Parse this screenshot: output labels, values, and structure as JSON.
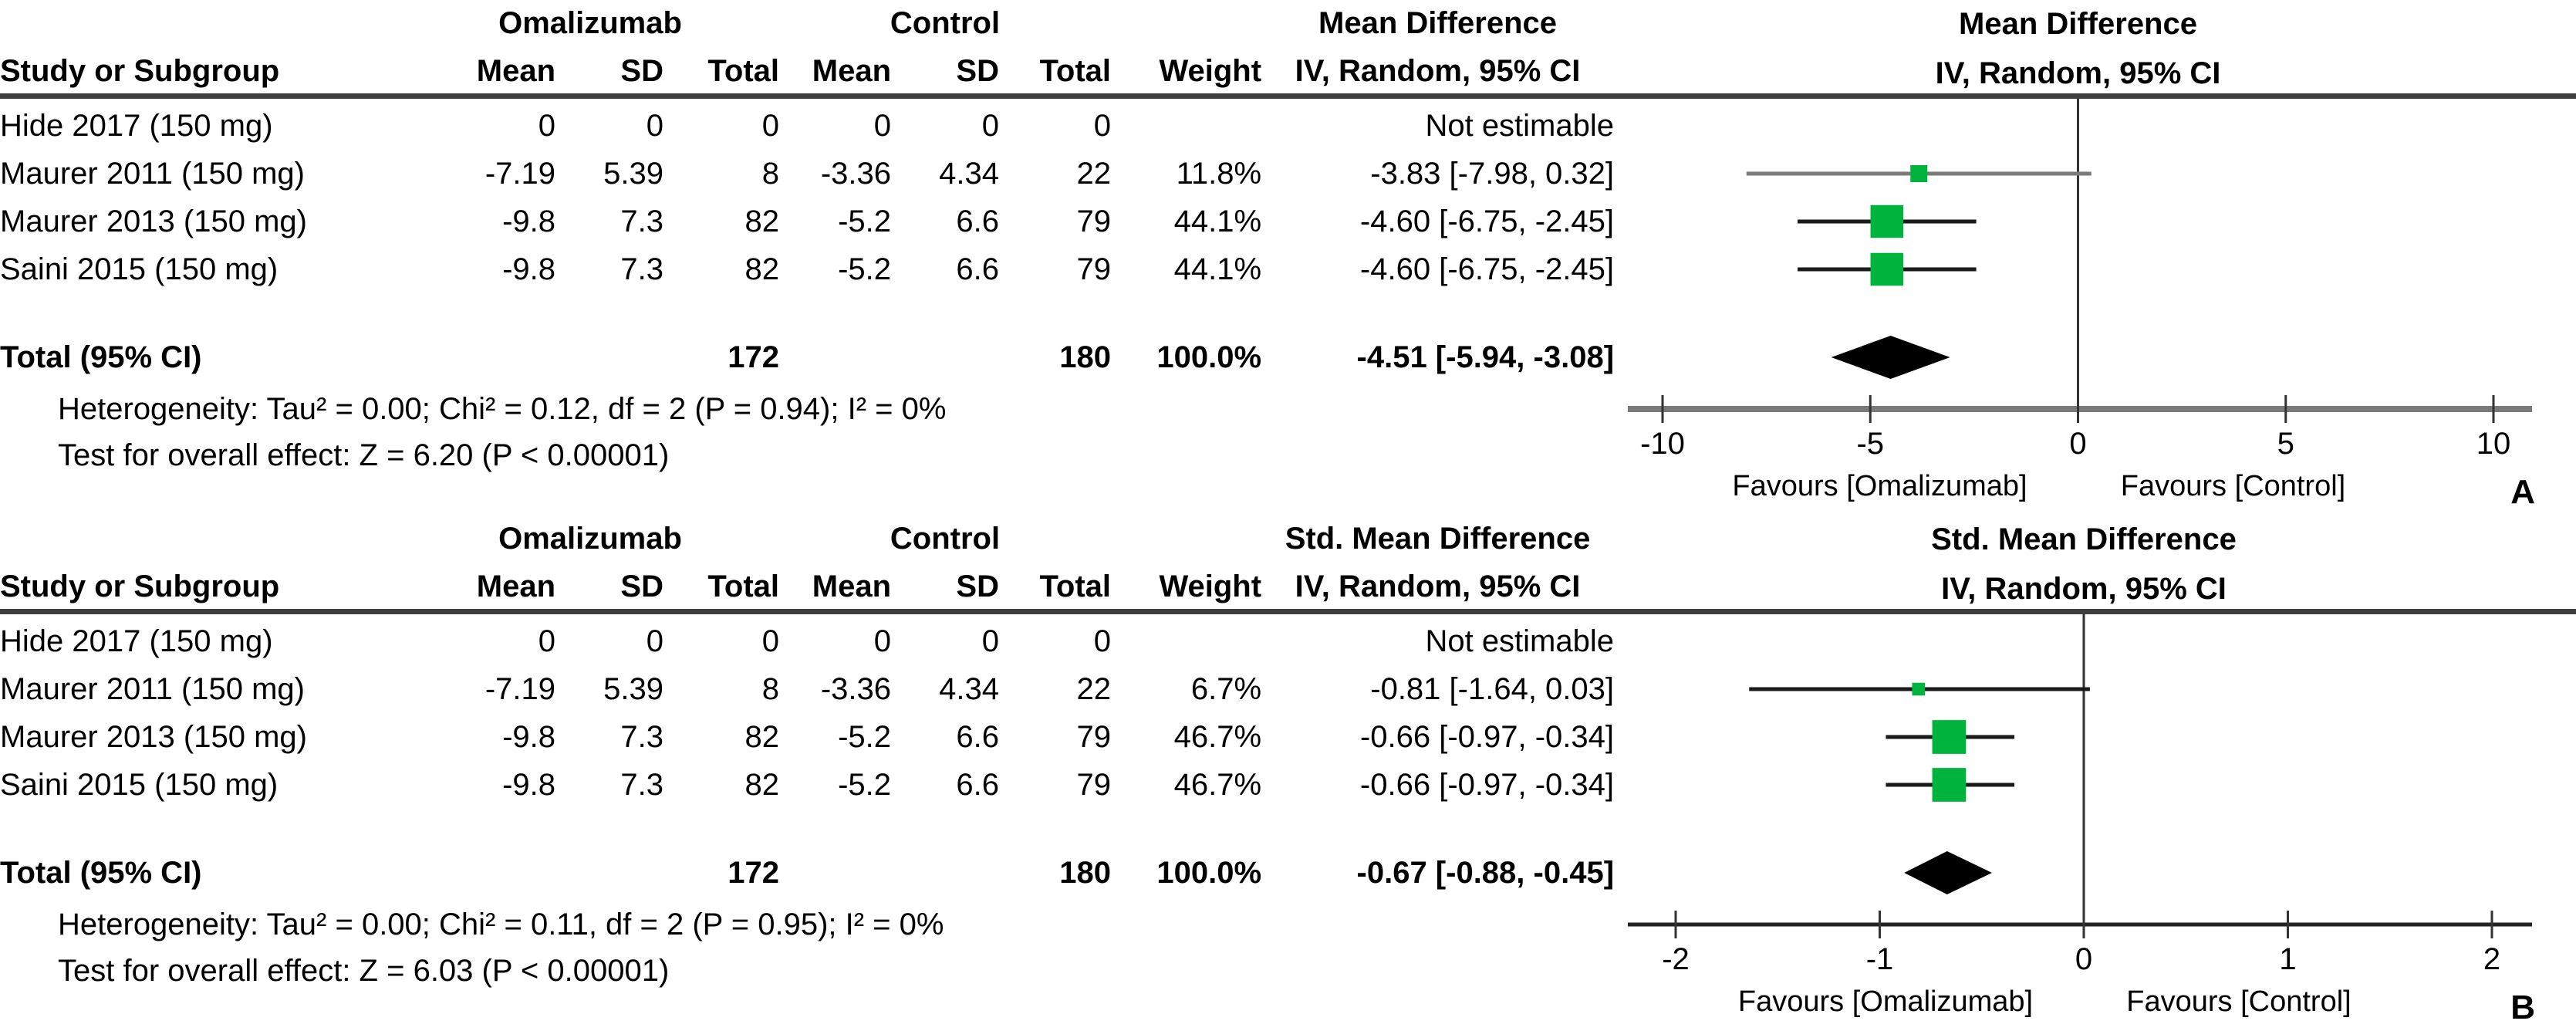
{
  "chart_data": [
    {
      "type": "forest",
      "panel_label": "A",
      "effect_label": "Mean Difference",
      "group_headers": {
        "treatment": "Omalizumab",
        "control": "Control"
      },
      "col_headers": {
        "study": "Study or Subgroup",
        "mean1": "Mean",
        "sd1": "SD",
        "total1": "Total",
        "mean2": "Mean",
        "sd2": "SD",
        "total2": "Total",
        "weight": "Weight",
        "ci": "IV, Random, 95% CI"
      },
      "plot_header_line1": "Mean Difference",
      "plot_header_line2": "IV, Random, 95% CI",
      "rows": [
        {
          "study": "Hide 2017 (150 mg)",
          "mean1": "0",
          "sd1": "0",
          "total1": "0",
          "mean2": "0",
          "sd2": "0",
          "total2": "0",
          "weight": "",
          "ci_text": "Not estimable"
        },
        {
          "study": "Maurer 2011 (150 mg)",
          "mean1": "-7.19",
          "sd1": "5.39",
          "total1": "8",
          "mean2": "-3.36",
          "sd2": "4.34",
          "total2": "22",
          "weight": "11.8%",
          "ci_text": "-3.83 [-7.98, 0.32]",
          "est": -3.83,
          "lo": -7.98,
          "hi": 0.32,
          "weight_pct": 11.8,
          "line_color": "#7a7a7a"
        },
        {
          "study": "Maurer 2013 (150 mg)",
          "mean1": "-9.8",
          "sd1": "7.3",
          "total1": "82",
          "mean2": "-5.2",
          "sd2": "6.6",
          "total2": "79",
          "weight": "44.1%",
          "ci_text": "-4.60 [-6.75, -2.45]",
          "est": -4.6,
          "lo": -6.75,
          "hi": -2.45,
          "weight_pct": 44.1,
          "line_color": "#1a1a1a"
        },
        {
          "study": "Saini 2015 (150 mg)",
          "mean1": "-9.8",
          "sd1": "7.3",
          "total1": "82",
          "mean2": "-5.2",
          "sd2": "6.6",
          "total2": "79",
          "weight": "44.1%",
          "ci_text": "-4.60 [-6.75, -2.45]",
          "est": -4.6,
          "lo": -6.75,
          "hi": -2.45,
          "weight_pct": 44.1,
          "line_color": "#1a1a1a"
        }
      ],
      "total": {
        "label": "Total (95% CI)",
        "total1": "172",
        "total2": "180",
        "weight": "100.0%",
        "ci_text": "-4.51 [-5.94, -3.08]",
        "est": -4.51,
        "lo": -5.94,
        "hi": -3.08
      },
      "heterogeneity": "Heterogeneity: Tau² = 0.00; Chi² = 0.12, df = 2 (P = 0.94); I² = 0%",
      "overall_effect": "Test for overall effect: Z = 6.20 (P < 0.00001)",
      "axis": {
        "min": -10,
        "max": 10,
        "ticks": [
          -10,
          -5,
          0,
          5,
          10
        ],
        "favours_left": "Favours [Omalizumab]",
        "favours_right": "Favours [Control]"
      },
      "marker_color": "#00b33c",
      "diamond_color": "#000000"
    },
    {
      "type": "forest",
      "panel_label": "B",
      "effect_label": "Std. Mean Difference",
      "group_headers": {
        "treatment": "Omalizumab",
        "control": "Control"
      },
      "col_headers": {
        "study": "Study or Subgroup",
        "mean1": "Mean",
        "sd1": "SD",
        "total1": "Total",
        "mean2": "Mean",
        "sd2": "SD",
        "total2": "Total",
        "weight": "Weight",
        "ci": "IV, Random, 95% CI"
      },
      "plot_header_line1": "Std. Mean Difference",
      "plot_header_line2": "IV, Random, 95% CI",
      "rows": [
        {
          "study": "Hide 2017 (150 mg)",
          "mean1": "0",
          "sd1": "0",
          "total1": "0",
          "mean2": "0",
          "sd2": "0",
          "total2": "0",
          "weight": "",
          "ci_text": "Not estimable"
        },
        {
          "study": "Maurer 2011 (150 mg)",
          "mean1": "-7.19",
          "sd1": "5.39",
          "total1": "8",
          "mean2": "-3.36",
          "sd2": "4.34",
          "total2": "22",
          "weight": "6.7%",
          "ci_text": "-0.81 [-1.64, 0.03]",
          "est": -0.81,
          "lo": -1.64,
          "hi": 0.03,
          "weight_pct": 6.7,
          "line_color": "#1a1a1a"
        },
        {
          "study": "Maurer 2013 (150 mg)",
          "mean1": "-9.8",
          "sd1": "7.3",
          "total1": "82",
          "mean2": "-5.2",
          "sd2": "6.6",
          "total2": "79",
          "weight": "46.7%",
          "ci_text": "-0.66 [-0.97, -0.34]",
          "est": -0.66,
          "lo": -0.97,
          "hi": -0.34,
          "weight_pct": 46.7,
          "line_color": "#1a1a1a"
        },
        {
          "study": "Saini 2015 (150 mg)",
          "mean1": "-9.8",
          "sd1": "7.3",
          "total1": "82",
          "mean2": "-5.2",
          "sd2": "6.6",
          "total2": "79",
          "weight": "46.7%",
          "ci_text": "-0.66 [-0.97, -0.34]",
          "est": -0.66,
          "lo": -0.97,
          "hi": -0.34,
          "weight_pct": 46.7,
          "line_color": "#1a1a1a"
        }
      ],
      "total": {
        "label": "Total (95% CI)",
        "total1": "172",
        "total2": "180",
        "weight": "100.0%",
        "ci_text": "-0.67 [-0.88, -0.45]",
        "est": -0.67,
        "lo": -0.88,
        "hi": -0.45
      },
      "heterogeneity": "Heterogeneity: Tau² = 0.00; Chi² = 0.11, df = 2 (P = 0.95); I² = 0%",
      "overall_effect": "Test for overall effect: Z = 6.03 (P < 0.00001)",
      "axis": {
        "min": -2,
        "max": 2,
        "ticks": [
          -2,
          -1,
          0,
          1,
          2
        ],
        "favours_left": "Favours [Omalizumab]",
        "favours_right": "Favours [Control]"
      },
      "marker_color": "#00b33c",
      "diamond_color": "#000000"
    }
  ]
}
